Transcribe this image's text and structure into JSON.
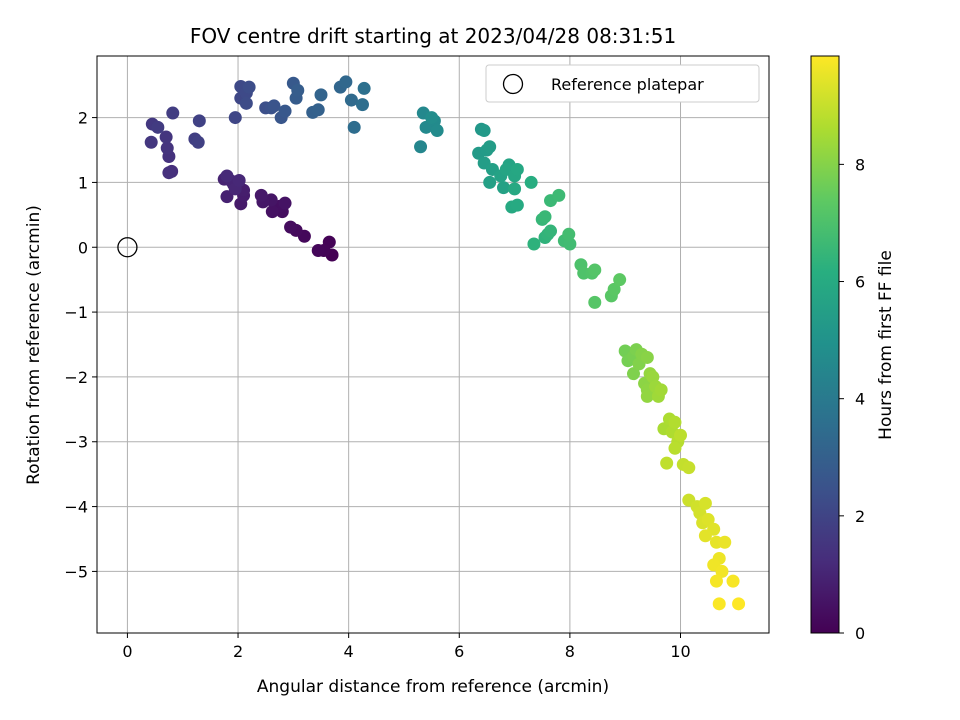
{
  "chart_data": {
    "type": "scatter",
    "title": "FOV centre drift starting at 2023/04/28 08:31:51",
    "xlabel": "Angular distance from reference (arcmin)",
    "ylabel": "Rotation from reference (arcmin)",
    "xlim": [
      -0.55,
      11.6
    ],
    "ylim": [
      -5.95,
      2.95
    ],
    "x_ticks": [
      0,
      2,
      4,
      6,
      8,
      10
    ],
    "y_ticks": [
      2,
      1,
      0,
      -1,
      -2,
      -3,
      -4,
      -5
    ],
    "y_tick_labels": [
      "2",
      "1",
      "0",
      "−1",
      "−2",
      "−3",
      "−4",
      "−5"
    ],
    "grid": true,
    "legend": {
      "position": "top-right",
      "entries": [
        "Reference platepar"
      ]
    },
    "reference_point": {
      "x": 0,
      "y": 0,
      "label": "Reference platepar",
      "marker": "open-circle"
    },
    "colorbar": {
      "label": "Hours from first FF file",
      "colormap": "viridis",
      "range": [
        0,
        9.85
      ],
      "ticks": [
        0,
        2,
        4,
        6,
        8
      ],
      "tick_labels": [
        "0",
        "2",
        "4",
        "6",
        "8"
      ]
    },
    "points": [
      {
        "x": 3.7,
        "y": -0.12,
        "c": 0.0
      },
      {
        "x": 3.65,
        "y": 0.08,
        "c": 0.05
      },
      {
        "x": 3.55,
        "y": -0.05,
        "c": 0.1
      },
      {
        "x": 3.45,
        "y": -0.05,
        "c": 0.15
      },
      {
        "x": 3.2,
        "y": 0.17,
        "c": 0.2
      },
      {
        "x": 3.05,
        "y": 0.26,
        "c": 0.25
      },
      {
        "x": 2.95,
        "y": 0.31,
        "c": 0.3
      },
      {
        "x": 2.8,
        "y": 0.55,
        "c": 0.35
      },
      {
        "x": 2.75,
        "y": 0.63,
        "c": 0.4
      },
      {
        "x": 2.62,
        "y": 0.55,
        "c": 0.45
      },
      {
        "x": 2.85,
        "y": 0.68,
        "c": 0.5
      },
      {
        "x": 2.6,
        "y": 0.73,
        "c": 0.55
      },
      {
        "x": 2.45,
        "y": 0.7,
        "c": 0.6
      },
      {
        "x": 2.42,
        "y": 0.8,
        "c": 0.65
      },
      {
        "x": 2.05,
        "y": 0.67,
        "c": 0.7
      },
      {
        "x": 2.1,
        "y": 0.8,
        "c": 0.75
      },
      {
        "x": 2.1,
        "y": 0.88,
        "c": 0.8
      },
      {
        "x": 1.92,
        "y": 0.97,
        "c": 0.85
      },
      {
        "x": 1.8,
        "y": 0.78,
        "c": 0.9
      },
      {
        "x": 1.75,
        "y": 1.05,
        "c": 0.95
      },
      {
        "x": 1.88,
        "y": 1.02,
        "c": 1.0
      },
      {
        "x": 1.95,
        "y": 0.9,
        "c": 1.05
      },
      {
        "x": 2.02,
        "y": 1.03,
        "c": 1.1
      },
      {
        "x": 1.8,
        "y": 1.1,
        "c": 1.15
      },
      {
        "x": 0.8,
        "y": 1.17,
        "c": 1.3
      },
      {
        "x": 0.75,
        "y": 1.15,
        "c": 1.35
      },
      {
        "x": 0.75,
        "y": 1.4,
        "c": 1.4
      },
      {
        "x": 0.72,
        "y": 1.53,
        "c": 1.45
      },
      {
        "x": 0.7,
        "y": 1.7,
        "c": 1.5
      },
      {
        "x": 0.43,
        "y": 1.62,
        "c": 1.55
      },
      {
        "x": 0.45,
        "y": 1.9,
        "c": 1.6
      },
      {
        "x": 0.55,
        "y": 1.85,
        "c": 1.7
      },
      {
        "x": 0.82,
        "y": 2.07,
        "c": 1.75
      },
      {
        "x": 1.22,
        "y": 1.67,
        "c": 1.8
      },
      {
        "x": 1.28,
        "y": 1.62,
        "c": 1.85
      },
      {
        "x": 1.3,
        "y": 1.95,
        "c": 1.9
      },
      {
        "x": 1.95,
        "y": 2.0,
        "c": 2.05
      },
      {
        "x": 2.05,
        "y": 2.3,
        "c": 2.1
      },
      {
        "x": 2.05,
        "y": 2.48,
        "c": 2.15
      },
      {
        "x": 2.15,
        "y": 2.38,
        "c": 2.2
      },
      {
        "x": 2.15,
        "y": 2.22,
        "c": 2.25
      },
      {
        "x": 2.2,
        "y": 2.47,
        "c": 2.3
      },
      {
        "x": 2.5,
        "y": 2.15,
        "c": 2.4
      },
      {
        "x": 2.6,
        "y": 2.15,
        "c": 2.45
      },
      {
        "x": 2.65,
        "y": 2.18,
        "c": 2.55
      },
      {
        "x": 2.78,
        "y": 2.0,
        "c": 2.6
      },
      {
        "x": 2.85,
        "y": 2.1,
        "c": 2.7
      },
      {
        "x": 3.0,
        "y": 2.53,
        "c": 2.75
      },
      {
        "x": 3.05,
        "y": 2.3,
        "c": 2.85
      },
      {
        "x": 3.08,
        "y": 2.42,
        "c": 2.9
      },
      {
        "x": 3.35,
        "y": 2.08,
        "c": 3.0
      },
      {
        "x": 3.45,
        "y": 2.12,
        "c": 3.05
      },
      {
        "x": 3.5,
        "y": 2.35,
        "c": 3.15
      },
      {
        "x": 3.85,
        "y": 2.47,
        "c": 3.25
      },
      {
        "x": 3.95,
        "y": 2.55,
        "c": 3.3
      },
      {
        "x": 4.05,
        "y": 2.27,
        "c": 3.4
      },
      {
        "x": 4.1,
        "y": 1.85,
        "c": 3.5
      },
      {
        "x": 4.25,
        "y": 2.2,
        "c": 3.55
      },
      {
        "x": 4.28,
        "y": 2.45,
        "c": 3.6
      },
      {
        "x": 5.3,
        "y": 1.55,
        "c": 4.5
      },
      {
        "x": 5.35,
        "y": 2.07,
        "c": 4.55
      },
      {
        "x": 5.4,
        "y": 1.85,
        "c": 4.6
      },
      {
        "x": 5.55,
        "y": 1.95,
        "c": 4.65
      },
      {
        "x": 5.6,
        "y": 1.8,
        "c": 4.7
      },
      {
        "x": 5.5,
        "y": 2.0,
        "c": 4.75
      },
      {
        "x": 6.4,
        "y": 1.82,
        "c": 5.2
      },
      {
        "x": 6.45,
        "y": 1.8,
        "c": 5.25
      },
      {
        "x": 6.35,
        "y": 1.45,
        "c": 5.3
      },
      {
        "x": 6.5,
        "y": 1.5,
        "c": 5.35
      },
      {
        "x": 6.55,
        "y": 1.55,
        "c": 5.4
      },
      {
        "x": 6.45,
        "y": 1.3,
        "c": 5.45
      },
      {
        "x": 6.6,
        "y": 1.2,
        "c": 5.5
      },
      {
        "x": 6.55,
        "y": 1.0,
        "c": 5.55
      },
      {
        "x": 6.8,
        "y": 0.92,
        "c": 5.6
      },
      {
        "x": 6.75,
        "y": 1.1,
        "c": 5.65
      },
      {
        "x": 6.9,
        "y": 1.27,
        "c": 5.7
      },
      {
        "x": 6.85,
        "y": 1.2,
        "c": 5.75
      },
      {
        "x": 7.0,
        "y": 1.1,
        "c": 5.8
      },
      {
        "x": 7.05,
        "y": 1.2,
        "c": 5.85
      },
      {
        "x": 7.0,
        "y": 0.9,
        "c": 5.9
      },
      {
        "x": 6.95,
        "y": 0.62,
        "c": 5.95
      },
      {
        "x": 7.05,
        "y": 0.65,
        "c": 6.0
      },
      {
        "x": 7.3,
        "y": 1.0,
        "c": 6.1
      },
      {
        "x": 7.35,
        "y": 0.05,
        "c": 6.3
      },
      {
        "x": 7.55,
        "y": 0.15,
        "c": 6.35
      },
      {
        "x": 7.6,
        "y": 0.2,
        "c": 6.4
      },
      {
        "x": 7.65,
        "y": 0.25,
        "c": 6.45
      },
      {
        "x": 7.5,
        "y": 0.43,
        "c": 6.5
      },
      {
        "x": 7.55,
        "y": 0.47,
        "c": 6.55
      },
      {
        "x": 7.65,
        "y": 0.72,
        "c": 6.6
      },
      {
        "x": 7.8,
        "y": 0.8,
        "c": 6.65
      },
      {
        "x": 7.9,
        "y": 0.1,
        "c": 6.7
      },
      {
        "x": 8.0,
        "y": 0.05,
        "c": 6.75
      },
      {
        "x": 7.98,
        "y": 0.2,
        "c": 6.8
      },
      {
        "x": 8.2,
        "y": -0.27,
        "c": 7.0
      },
      {
        "x": 8.25,
        "y": -0.4,
        "c": 7.05
      },
      {
        "x": 8.4,
        "y": -0.4,
        "c": 7.1
      },
      {
        "x": 8.45,
        "y": -0.35,
        "c": 7.15
      },
      {
        "x": 8.45,
        "y": -0.85,
        "c": 7.2
      },
      {
        "x": 8.75,
        "y": -0.75,
        "c": 7.25
      },
      {
        "x": 8.8,
        "y": -0.65,
        "c": 7.3
      },
      {
        "x": 8.9,
        "y": -0.5,
        "c": 7.35
      },
      {
        "x": 9.0,
        "y": -1.6,
        "c": 7.7
      },
      {
        "x": 9.05,
        "y": -1.75,
        "c": 7.75
      },
      {
        "x": 9.15,
        "y": -1.68,
        "c": 7.8
      },
      {
        "x": 9.2,
        "y": -1.58,
        "c": 7.85
      },
      {
        "x": 9.15,
        "y": -1.95,
        "c": 7.9
      },
      {
        "x": 9.25,
        "y": -1.8,
        "c": 7.95
      },
      {
        "x": 9.3,
        "y": -1.65,
        "c": 8.0
      },
      {
        "x": 9.4,
        "y": -1.7,
        "c": 8.05
      },
      {
        "x": 9.35,
        "y": -2.1,
        "c": 8.1
      },
      {
        "x": 9.4,
        "y": -2.2,
        "c": 8.15
      },
      {
        "x": 9.4,
        "y": -2.3,
        "c": 8.2
      },
      {
        "x": 9.45,
        "y": -1.95,
        "c": 8.25
      },
      {
        "x": 9.5,
        "y": -2.0,
        "c": 8.3
      },
      {
        "x": 9.55,
        "y": -2.15,
        "c": 8.35
      },
      {
        "x": 9.6,
        "y": -2.3,
        "c": 8.4
      },
      {
        "x": 9.65,
        "y": -2.2,
        "c": 8.45
      },
      {
        "x": 9.7,
        "y": -2.8,
        "c": 8.55
      },
      {
        "x": 9.8,
        "y": -2.65,
        "c": 8.6
      },
      {
        "x": 9.85,
        "y": -2.85,
        "c": 8.65
      },
      {
        "x": 9.9,
        "y": -2.7,
        "c": 8.7
      },
      {
        "x": 9.95,
        "y": -3.0,
        "c": 8.75
      },
      {
        "x": 9.9,
        "y": -3.1,
        "c": 8.8
      },
      {
        "x": 10.0,
        "y": -2.9,
        "c": 8.85
      },
      {
        "x": 9.75,
        "y": -3.33,
        "c": 8.9
      },
      {
        "x": 10.05,
        "y": -3.35,
        "c": 8.95
      },
      {
        "x": 10.15,
        "y": -3.4,
        "c": 9.0
      },
      {
        "x": 10.15,
        "y": -3.9,
        "c": 9.1
      },
      {
        "x": 10.3,
        "y": -4.0,
        "c": 9.15
      },
      {
        "x": 10.35,
        "y": -4.1,
        "c": 9.2
      },
      {
        "x": 10.45,
        "y": -3.95,
        "c": 9.25
      },
      {
        "x": 10.4,
        "y": -4.25,
        "c": 9.3
      },
      {
        "x": 10.5,
        "y": -4.2,
        "c": 9.35
      },
      {
        "x": 10.6,
        "y": -4.35,
        "c": 9.4
      },
      {
        "x": 10.45,
        "y": -4.45,
        "c": 9.45
      },
      {
        "x": 10.65,
        "y": -4.55,
        "c": 9.5
      },
      {
        "x": 10.8,
        "y": -4.55,
        "c": 9.55
      },
      {
        "x": 10.7,
        "y": -4.8,
        "c": 9.6
      },
      {
        "x": 10.6,
        "y": -4.9,
        "c": 9.65
      },
      {
        "x": 10.75,
        "y": -5.0,
        "c": 9.68
      },
      {
        "x": 10.65,
        "y": -5.15,
        "c": 9.72
      },
      {
        "x": 10.95,
        "y": -5.15,
        "c": 9.76
      },
      {
        "x": 10.7,
        "y": -5.5,
        "c": 9.8
      },
      {
        "x": 11.05,
        "y": -5.5,
        "c": 9.85
      }
    ]
  }
}
